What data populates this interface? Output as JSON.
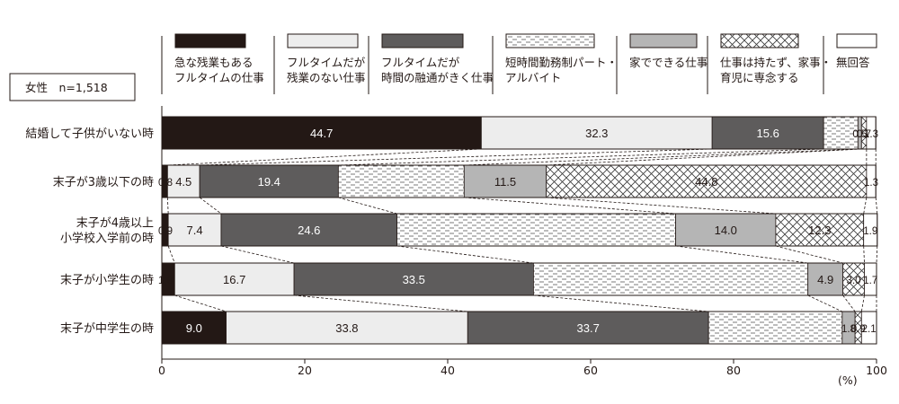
{
  "chart_data": {
    "type": "bar",
    "orientation": "horizontal",
    "stacked": true,
    "sample_label": "女性　n=1,518",
    "xlim": [
      0,
      100
    ],
    "xticks": [
      "0",
      "20",
      "40",
      "60",
      "80",
      "100"
    ],
    "xunit": "(%)",
    "categories": [
      [
        "結婚して子供がいない時"
      ],
      [
        "末子が3歳以下の時"
      ],
      [
        "末子が4歳以上",
        "小学校入学前の時"
      ],
      [
        "末子が小学生の時"
      ],
      [
        "末子が中学生の時"
      ]
    ],
    "series": [
      {
        "name": [
          "急な残業もある",
          "フルタイムの仕事"
        ],
        "color": "#231815",
        "pattern": "solid",
        "values": [
          44.7,
          0.8,
          0.9,
          1.8,
          9.0
        ]
      },
      {
        "name": [
          "フルタイムだが",
          "残業のない仕事"
        ],
        "color": "#ededed",
        "pattern": "solid",
        "values": [
          32.3,
          4.5,
          7.4,
          16.7,
          33.8
        ]
      },
      {
        "name": [
          "フルタイムだが",
          "時間の融通がきく仕事"
        ],
        "color": "#5e5c5c",
        "pattern": "solid",
        "values": [
          15.6,
          19.4,
          24.6,
          33.5,
          33.7
        ]
      },
      {
        "name": [
          "短時間勤務制パート・",
          "アルバイト"
        ],
        "color": "#ffffff",
        "pattern": "dashes",
        "values": [
          4.8,
          17.6,
          39.0,
          38.4,
          18.7
        ]
      },
      {
        "name": [
          "家でできる仕事"
        ],
        "color": "#b5b5b5",
        "pattern": "solid",
        "values": [
          0.5,
          11.5,
          14.0,
          4.9,
          1.8
        ]
      },
      {
        "name": [
          "仕事は持たず、家事・",
          "育児に専念する"
        ],
        "color": "#ffffff",
        "pattern": "crosshatch",
        "values": [
          0.7,
          44.8,
          12.3,
          3.0,
          0.9
        ]
      },
      {
        "name": [
          "無回答"
        ],
        "color": "#ffffff",
        "pattern": "solid",
        "values": [
          1.3,
          1.3,
          1.9,
          1.7,
          2.1
        ]
      }
    ],
    "data_labels": [
      [
        "44.7",
        "32.3",
        "15.6",
        "",
        "0.5",
        "0.7",
        "1.3"
      ],
      [
        "0.8",
        "4.5",
        "19.4",
        "",
        "11.5",
        "44.8",
        "1.3"
      ],
      [
        "0.9",
        "7.4",
        "24.6",
        "",
        "14.0",
        "12.3",
        "1.9"
      ],
      [
        "1.8",
        "16.7",
        "33.5",
        "",
        "4.9",
        "3.0",
        "1.7"
      ],
      [
        "9.0",
        "33.8",
        "33.7",
        "",
        "1.8",
        "0.9",
        "2.1"
      ]
    ],
    "connector_lines": "dashed",
    "legend_position": "top"
  }
}
